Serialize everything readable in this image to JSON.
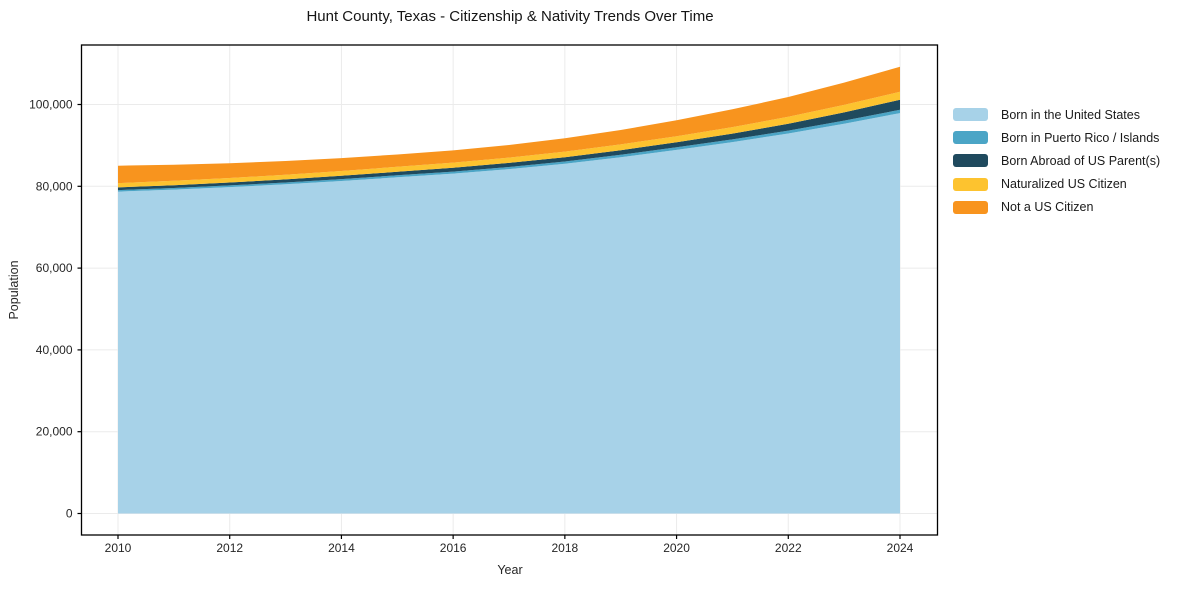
{
  "chart_data": {
    "type": "area",
    "stacked": true,
    "title": "Hunt County, Texas - Citizenship & Nativity Trends Over Time",
    "xlabel": "Year",
    "ylabel": "Population",
    "x": [
      2010,
      2011,
      2012,
      2013,
      2014,
      2015,
      2016,
      2017,
      2018,
      2019,
      2020,
      2021,
      2022,
      2023,
      2024
    ],
    "series": [
      {
        "name": "Born in the United States",
        "color": "#a7d2e8",
        "values": [
          78700,
          79200,
          79800,
          80500,
          81300,
          82200,
          83100,
          84200,
          85500,
          87100,
          88900,
          90800,
          92900,
          95300,
          97900
        ]
      },
      {
        "name": "Born in Puerto Rico / Islands",
        "color": "#4ba5c6",
        "values": [
          370,
          390,
          410,
          430,
          455,
          480,
          505,
          530,
          560,
          590,
          625,
          665,
          710,
          760,
          810
        ]
      },
      {
        "name": "Born Abroad of US Parent(s)",
        "color": "#1f4a5e",
        "values": [
          660,
          690,
          725,
          765,
          810,
          860,
          915,
          980,
          1055,
          1140,
          1240,
          1420,
          1680,
          2020,
          2440
        ]
      },
      {
        "name": "Naturalized US Citizen",
        "color": "#fdc32f",
        "values": [
          1050,
          1075,
          1105,
          1140,
          1180,
          1220,
          1265,
          1315,
          1370,
          1425,
          1490,
          1590,
          1700,
          1820,
          1960
        ]
      },
      {
        "name": "Not a US Citizen",
        "color": "#f8941e",
        "values": [
          4250,
          3900,
          3600,
          3350,
          3150,
          3020,
          3000,
          3080,
          3250,
          3500,
          3900,
          4350,
          4850,
          5450,
          6100
        ]
      }
    ],
    "xticks": {
      "values": [
        2010,
        2012,
        2014,
        2016,
        2018,
        2020,
        2022,
        2024
      ],
      "labels": [
        "2010",
        "2012",
        "2014",
        "2016",
        "2018",
        "2020",
        "2022",
        "2024"
      ]
    },
    "yticks": {
      "values": [
        0,
        20000,
        40000,
        60000,
        80000,
        100000
      ],
      "labels": [
        "0",
        "20,000",
        "40,000",
        "60,000",
        "80,000",
        "100,000"
      ]
    },
    "xlim": [
      2009.35,
      2024.68
    ],
    "ylim": [
      -5250,
      114550
    ],
    "grid": true,
    "legend_position": "center right outside",
    "frame_color": "#000000",
    "grid_color": "#ebebeb",
    "background_color": "#ffffff"
  }
}
